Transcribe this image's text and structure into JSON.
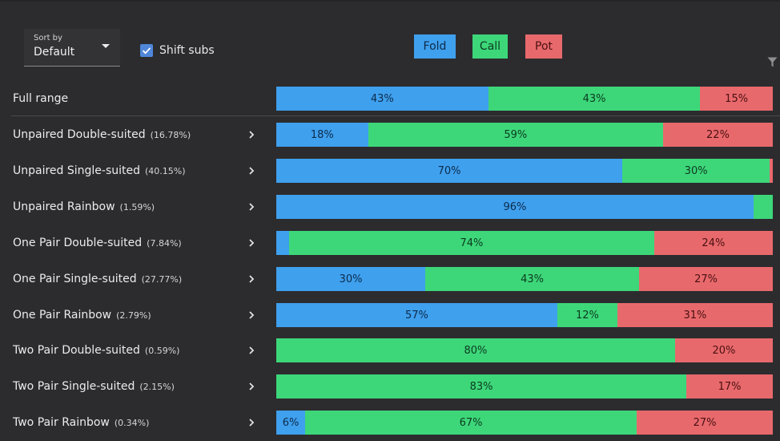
{
  "colors": {
    "fold": "#3fa0ee",
    "call": "#3dd77a",
    "pot": "#e8696c",
    "background": "#2c2c2f",
    "checkbox": "#4f86d9"
  },
  "sort": {
    "label": "Sort by",
    "value": "Default",
    "icon": "chevron-down-icon"
  },
  "shift_subs": {
    "label": "Shift subs",
    "checked": true
  },
  "legend": {
    "fold": "Fold",
    "call": "Call",
    "pot": "Pot"
  },
  "filter_icon": "filter-icon",
  "rows": [
    {
      "name": "Full range",
      "pct": "",
      "expandable": false,
      "segments": [
        {
          "type": "fold",
          "share": 0.427,
          "label": "43%"
        },
        {
          "type": "call",
          "share": 0.427,
          "label": "43%"
        },
        {
          "type": "pot",
          "share": 0.146,
          "label": "15%"
        }
      ]
    },
    {
      "name": "Unpaired Double-suited",
      "pct": "(16.78%)",
      "expandable": true,
      "segments": [
        {
          "type": "fold",
          "share": 0.185,
          "label": "18%"
        },
        {
          "type": "call",
          "share": 0.594,
          "label": "59%"
        },
        {
          "type": "pot",
          "share": 0.221,
          "label": "22%"
        }
      ]
    },
    {
      "name": "Unpaired Single-suited",
      "pct": "(40.15%)",
      "expandable": true,
      "segments": [
        {
          "type": "fold",
          "share": 0.697,
          "label": "70%"
        },
        {
          "type": "call",
          "share": 0.297,
          "label": "30%"
        },
        {
          "type": "pot",
          "share": 0.006,
          "label": ""
        }
      ]
    },
    {
      "name": "Unpaired Rainbow",
      "pct": "(1.59%)",
      "expandable": true,
      "segments": [
        {
          "type": "fold",
          "share": 0.961,
          "label": "96%"
        },
        {
          "type": "call",
          "share": 0.039,
          "label": ""
        }
      ]
    },
    {
      "name": "One Pair Double-suited",
      "pct": "(7.84%)",
      "expandable": true,
      "segments": [
        {
          "type": "fold",
          "share": 0.026,
          "label": ""
        },
        {
          "type": "call",
          "share": 0.735,
          "label": "74%"
        },
        {
          "type": "pot",
          "share": 0.239,
          "label": "24%"
        }
      ]
    },
    {
      "name": "One Pair Single-suited",
      "pct": "(27.77%)",
      "expandable": true,
      "segments": [
        {
          "type": "fold",
          "share": 0.3,
          "label": "30%"
        },
        {
          "type": "call",
          "share": 0.431,
          "label": "43%"
        },
        {
          "type": "pot",
          "share": 0.269,
          "label": "27%"
        }
      ]
    },
    {
      "name": "One Pair Rainbow",
      "pct": "(2.79%)",
      "expandable": true,
      "segments": [
        {
          "type": "fold",
          "share": 0.566,
          "label": "57%"
        },
        {
          "type": "call",
          "share": 0.121,
          "label": "12%"
        },
        {
          "type": "pot",
          "share": 0.313,
          "label": "31%"
        }
      ]
    },
    {
      "name": "Two Pair Double-suited",
      "pct": "(0.59%)",
      "expandable": true,
      "segments": [
        {
          "type": "call",
          "share": 0.803,
          "label": "80%"
        },
        {
          "type": "pot",
          "share": 0.197,
          "label": "20%"
        }
      ]
    },
    {
      "name": "Two Pair Single-suited",
      "pct": "(2.15%)",
      "expandable": true,
      "segments": [
        {
          "type": "call",
          "share": 0.826,
          "label": "83%"
        },
        {
          "type": "pot",
          "share": 0.174,
          "label": "17%"
        }
      ]
    },
    {
      "name": "Two Pair Rainbow",
      "pct": "(0.34%)",
      "expandable": true,
      "segments": [
        {
          "type": "fold",
          "share": 0.058,
          "label": "6%"
        },
        {
          "type": "call",
          "share": 0.668,
          "label": "67%"
        },
        {
          "type": "pot",
          "share": 0.274,
          "label": "27%"
        }
      ]
    }
  ]
}
